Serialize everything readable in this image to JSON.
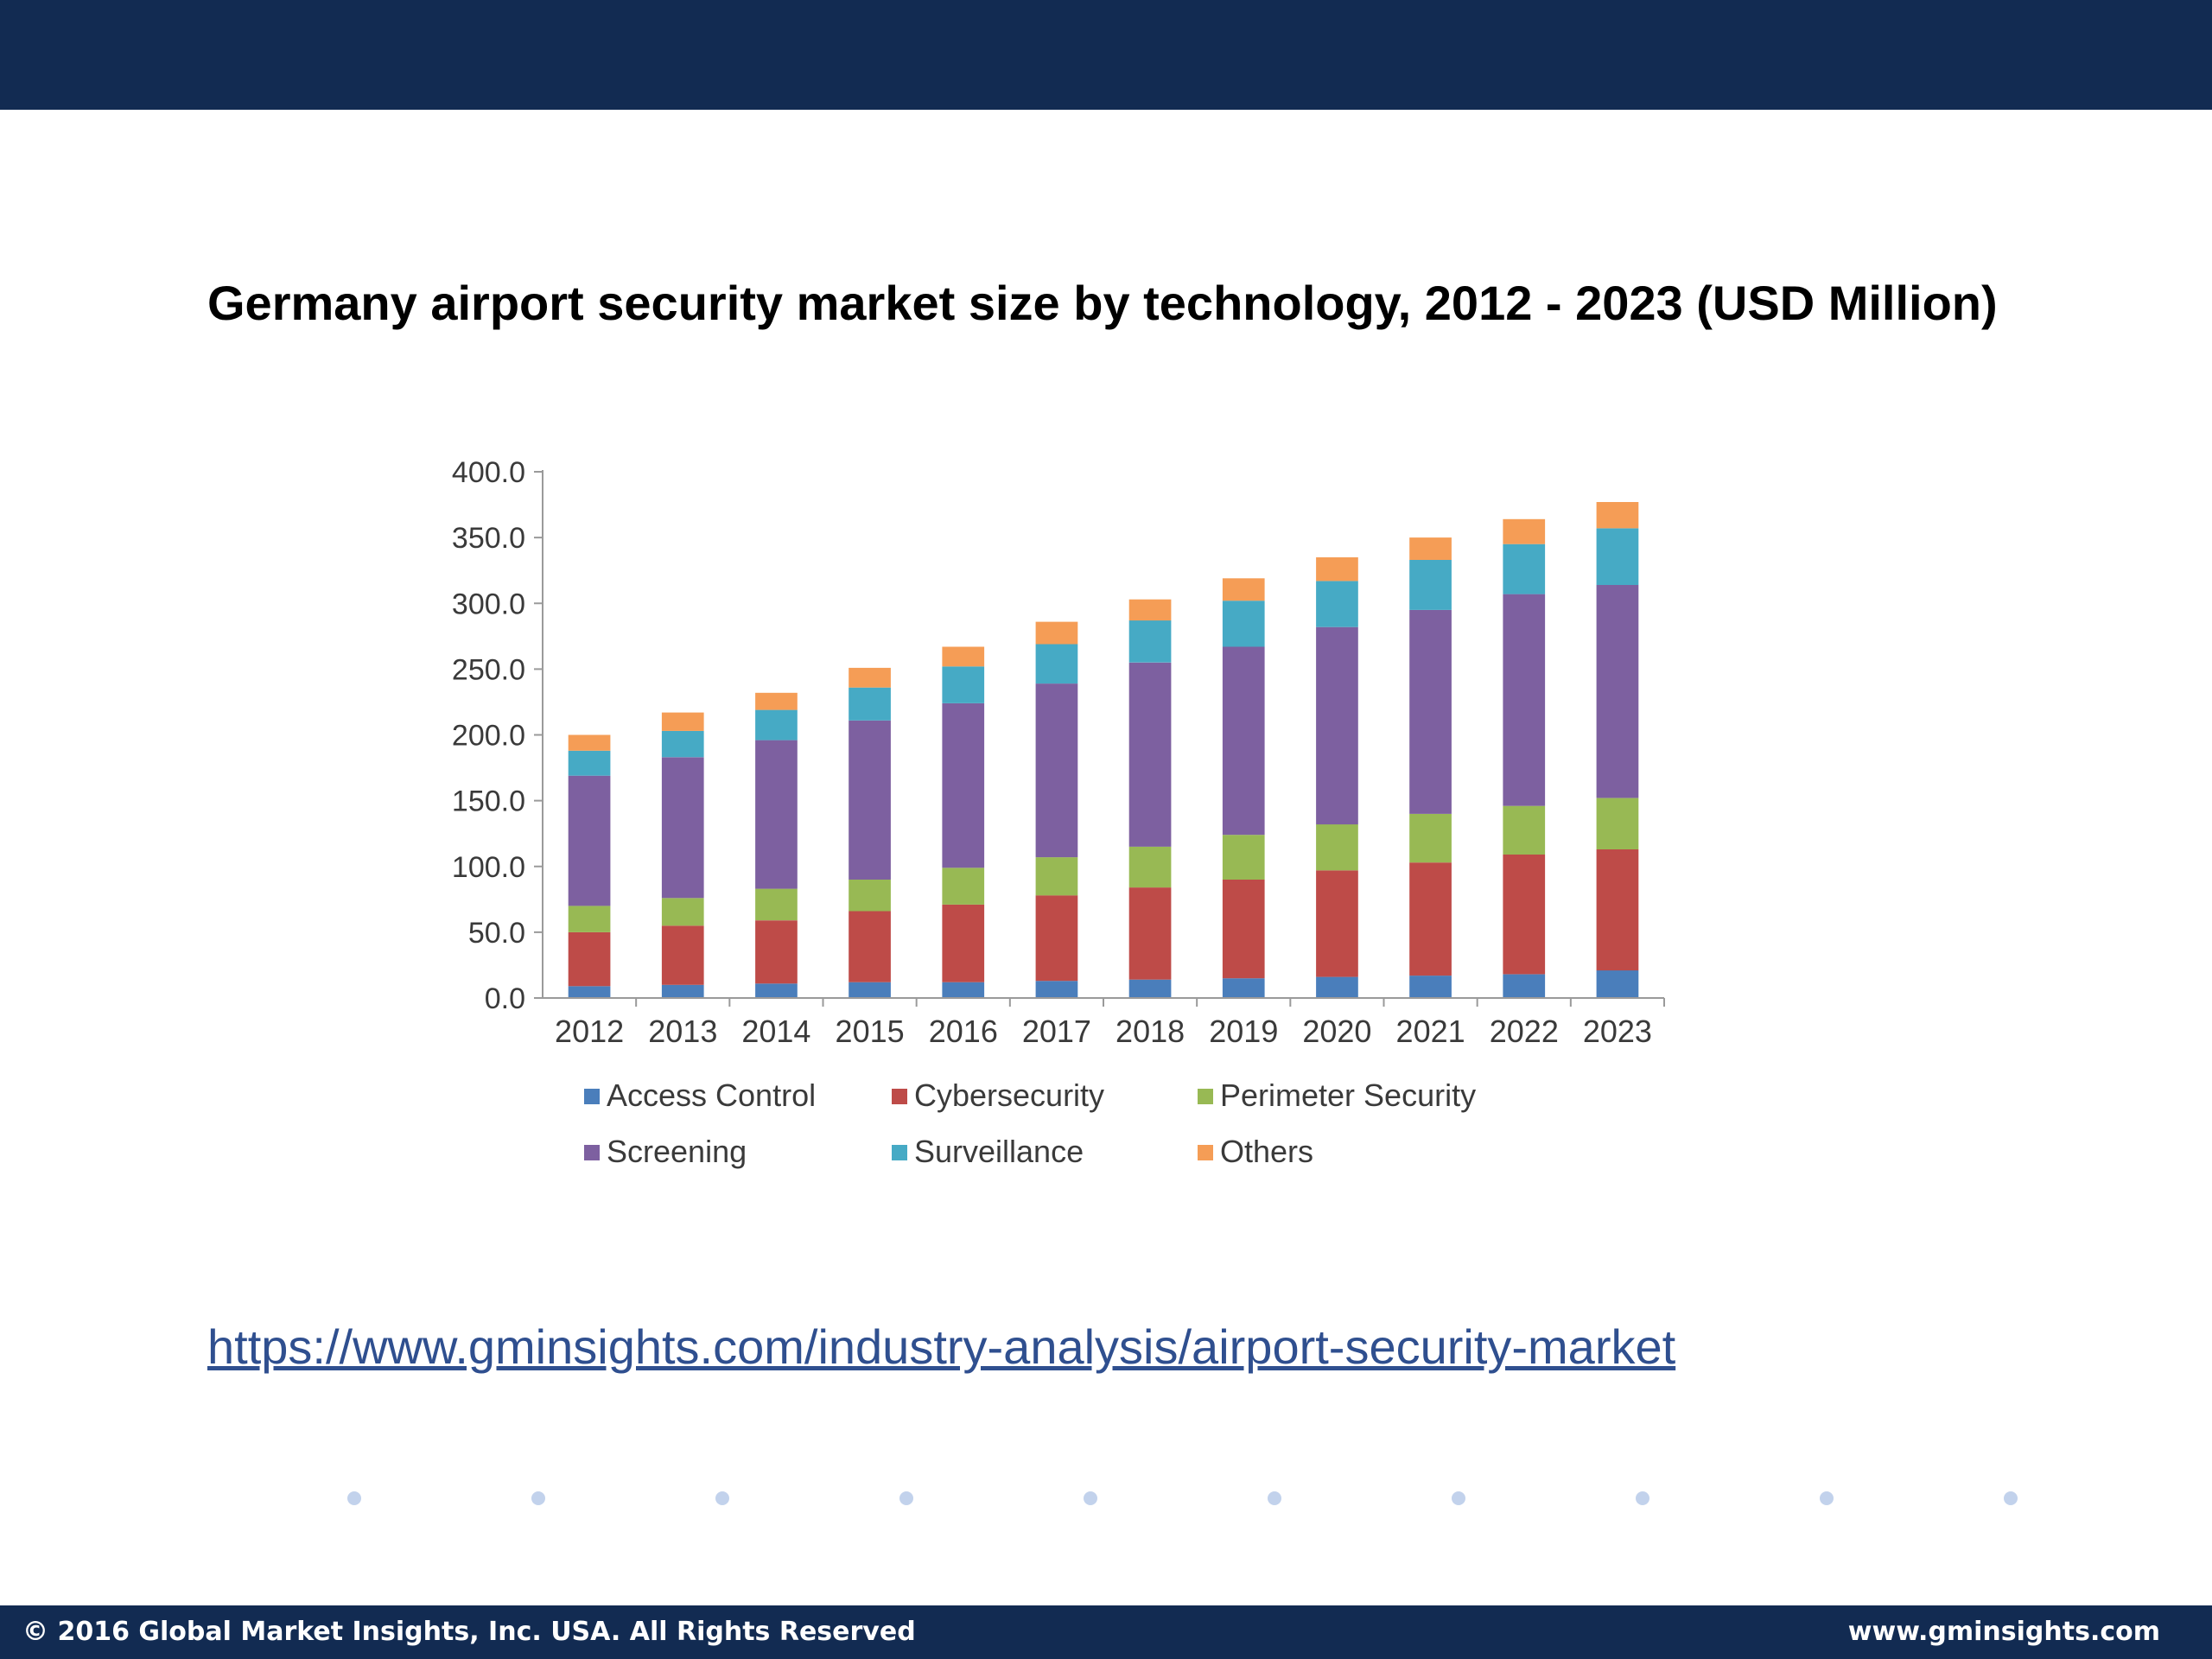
{
  "slide": {
    "title": "Germany airport security market size by technology, 2012 - 2023 (USD Million)",
    "source_link": "https://www.gminsights.com/industry-analysis/airport-security-market"
  },
  "footer": {
    "copyright": "© 2016 Global Market Insights, Inc. USA.  All Rights Reserved",
    "website": "www.gminsights.com"
  },
  "colors": {
    "band": "#122b52",
    "link": "#2f4f8f",
    "dots": "#c2d2ec"
  },
  "chart_data": {
    "type": "bar",
    "stacked": true,
    "title": "",
    "xlabel": "",
    "ylabel": "",
    "ylim": [
      0,
      400
    ],
    "yticks": [
      "0.0",
      "50.0",
      "100.0",
      "150.0",
      "200.0",
      "250.0",
      "300.0",
      "350.0",
      "400.0"
    ],
    "grid": false,
    "legend_position": "bottom",
    "categories": [
      "2012",
      "2013",
      "2014",
      "2015",
      "2016",
      "2017",
      "2018",
      "2019",
      "2020",
      "2021",
      "2022",
      "2023"
    ],
    "series": [
      {
        "name": "Access Control",
        "color": "#4a7ebb",
        "values": [
          9,
          10,
          11,
          12,
          12,
          13,
          14,
          15,
          16,
          17,
          18,
          21
        ]
      },
      {
        "name": "Cybersecurity",
        "color": "#be4b48",
        "values": [
          41,
          45,
          48,
          54,
          59,
          65,
          70,
          75,
          81,
          86,
          91,
          92
        ]
      },
      {
        "name": "Perimeter Security",
        "color": "#98b954",
        "values": [
          20,
          21,
          24,
          24,
          28,
          29,
          31,
          34,
          35,
          37,
          37,
          39
        ]
      },
      {
        "name": "Screening",
        "color": "#7d60a0",
        "values": [
          99,
          107,
          113,
          121,
          125,
          132,
          140,
          143,
          150,
          155,
          161,
          162
        ]
      },
      {
        "name": "Surveillance",
        "color": "#46aac5",
        "values": [
          19,
          20,
          23,
          25,
          28,
          30,
          32,
          35,
          35,
          38,
          38,
          43
        ]
      },
      {
        "name": "Others",
        "color": "#f59d56",
        "values": [
          12,
          14,
          13,
          15,
          15,
          17,
          16,
          17,
          18,
          17,
          19,
          20
        ]
      }
    ]
  }
}
